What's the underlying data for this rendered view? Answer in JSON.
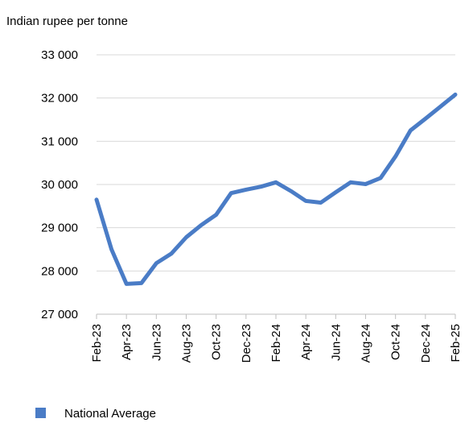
{
  "chart_data": {
    "type": "line",
    "y_unit_label": "Indian rupee per tonne",
    "xlabel": "",
    "ylabel": "",
    "ylim": [
      27000,
      33000
    ],
    "y_ticks": [
      27000,
      28000,
      29000,
      30000,
      31000,
      32000,
      33000
    ],
    "y_tick_labels": [
      "27 000",
      "28 000",
      "29 000",
      "30 000",
      "31 000",
      "32 000",
      "33 000"
    ],
    "x": [
      "Feb-23",
      "Mar-23",
      "Apr-23",
      "May-23",
      "Jun-23",
      "Jul-23",
      "Aug-23",
      "Sep-23",
      "Oct-23",
      "Nov-23",
      "Dec-23",
      "Jan-24",
      "Feb-24",
      "Mar-24",
      "Apr-24",
      "May-24",
      "Jun-24",
      "Jul-24",
      "Aug-24",
      "Sep-24",
      "Oct-24",
      "Nov-24",
      "Dec-24",
      "Jan-25",
      "Feb-25"
    ],
    "x_tick_labels": [
      "Feb-23",
      "Apr-23",
      "Jun-23",
      "Aug-23",
      "Oct-23",
      "Dec-23",
      "Feb-24",
      "Apr-24",
      "Jun-24",
      "Aug-24",
      "Oct-24",
      "Dec-24",
      "Feb-25"
    ],
    "series": [
      {
        "name": "National Average",
        "color": "#4a7cc6",
        "values": [
          29650,
          28500,
          27700,
          27720,
          28180,
          28400,
          28780,
          29060,
          29300,
          29800,
          29880,
          29950,
          30050,
          29850,
          29620,
          29580,
          29820,
          30050,
          30010,
          30150,
          30650,
          31250,
          31520,
          31800,
          32080
        ]
      }
    ],
    "grid": true,
    "legend_position": "bottom-left"
  }
}
